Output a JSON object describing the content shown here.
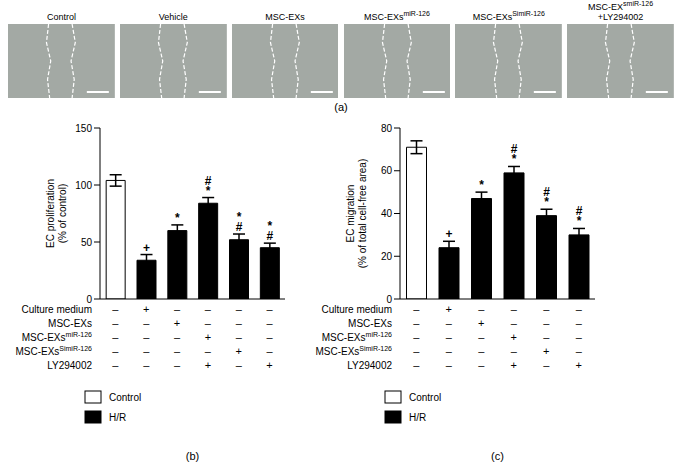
{
  "image_panel": {
    "label": "(a)",
    "images": [
      {
        "text": "Control"
      },
      {
        "text": "Vehicle"
      },
      {
        "text": "MSC-EXs"
      },
      {
        "text": "MSC-EXs",
        "sup": "miR-126"
      },
      {
        "text": "MSC-EXs",
        "sup": "SimiR-126"
      },
      {
        "text": "MSC-EX",
        "sup": "smiR-126",
        "suffix": "+LY294002"
      }
    ]
  },
  "chart_data": [
    {
      "type": "bar",
      "panel_label": "(b)",
      "y_label": [
        "EC proliferation",
        "(% of control)"
      ],
      "categories": [
        null,
        null,
        null,
        null,
        null,
        null
      ],
      "values": [
        104,
        34,
        60,
        84,
        52,
        45
      ],
      "errors": [
        5,
        5,
        5,
        5,
        5,
        4
      ],
      "colors": [
        "#ffffff",
        "#000000",
        "#000000",
        "#000000",
        "#000000",
        "#000000"
      ],
      "annotations": [
        [],
        [
          "+"
        ],
        [
          "*"
        ],
        [
          "#",
          "*"
        ],
        [
          "*",
          "#"
        ],
        [
          "*",
          "#"
        ]
      ],
      "ylim": [
        0,
        150
      ],
      "yticks": [
        0,
        50,
        100,
        150
      ],
      "legend_entries": [
        {
          "name": "Control",
          "color": "#ffffff"
        },
        {
          "name": "H/R",
          "color": "#000000"
        }
      ],
      "treatment_table": [
        {
          "label": {
            "text": "Culture medium"
          },
          "marks": [
            "–",
            "+",
            "–",
            "–",
            "–",
            "–"
          ]
        },
        {
          "label": {
            "text": "MSC-EXs"
          },
          "marks": [
            "–",
            "–",
            "+",
            "–",
            "–",
            "–"
          ]
        },
        {
          "label": {
            "text": "MSC-EXs",
            "sup": "miR-126"
          },
          "marks": [
            "–",
            "–",
            "–",
            "+",
            "–",
            "–"
          ]
        },
        {
          "label": {
            "text": "MSC-EXs",
            "sup": "SimiR-126"
          },
          "marks": [
            "–",
            "–",
            "–",
            "–",
            "+",
            "–"
          ]
        },
        {
          "label": {
            "text": "LY294002"
          },
          "marks": [
            "–",
            "–",
            "–",
            "+",
            "–",
            "+"
          ]
        }
      ]
    },
    {
      "type": "bar",
      "panel_label": "(c)",
      "y_label": [
        "EC migration",
        "(% of total cell-free area)"
      ],
      "categories": [
        null,
        null,
        null,
        null,
        null,
        null
      ],
      "values": [
        71,
        24,
        47,
        59,
        39,
        30
      ],
      "errors": [
        3,
        3,
        3,
        3,
        3,
        3
      ],
      "colors": [
        "#ffffff",
        "#000000",
        "#000000",
        "#000000",
        "#000000",
        "#000000"
      ],
      "annotations": [
        [],
        [
          "+"
        ],
        [
          "*"
        ],
        [
          "#",
          "*"
        ],
        [
          "#",
          "*"
        ],
        [
          "#",
          "*"
        ]
      ],
      "ylim": [
        0,
        80
      ],
      "yticks": [
        0,
        20,
        40,
        60,
        80
      ],
      "legend_entries": [
        {
          "name": "Control",
          "color": "#ffffff"
        },
        {
          "name": "H/R",
          "color": "#000000"
        }
      ],
      "treatment_table": [
        {
          "label": {
            "text": "Culture medium"
          },
          "marks": [
            "–",
            "+",
            "–",
            "–",
            "–",
            "–"
          ]
        },
        {
          "label": {
            "text": "MSC-EXs"
          },
          "marks": [
            "–",
            "–",
            "+",
            "–",
            "–",
            "–"
          ]
        },
        {
          "label": {
            "text": "MSC-EXs",
            "sup": "miR-126"
          },
          "marks": [
            "–",
            "–",
            "–",
            "+",
            "–",
            "–"
          ]
        },
        {
          "label": {
            "text": "MSC-EXs",
            "sup": "SimiR-126"
          },
          "marks": [
            "–",
            "–",
            "–",
            "–",
            "+",
            "–"
          ]
        },
        {
          "label": {
            "text": "LY294002"
          },
          "marks": [
            "–",
            "–",
            "–",
            "+",
            "–",
            "+"
          ]
        }
      ]
    }
  ]
}
